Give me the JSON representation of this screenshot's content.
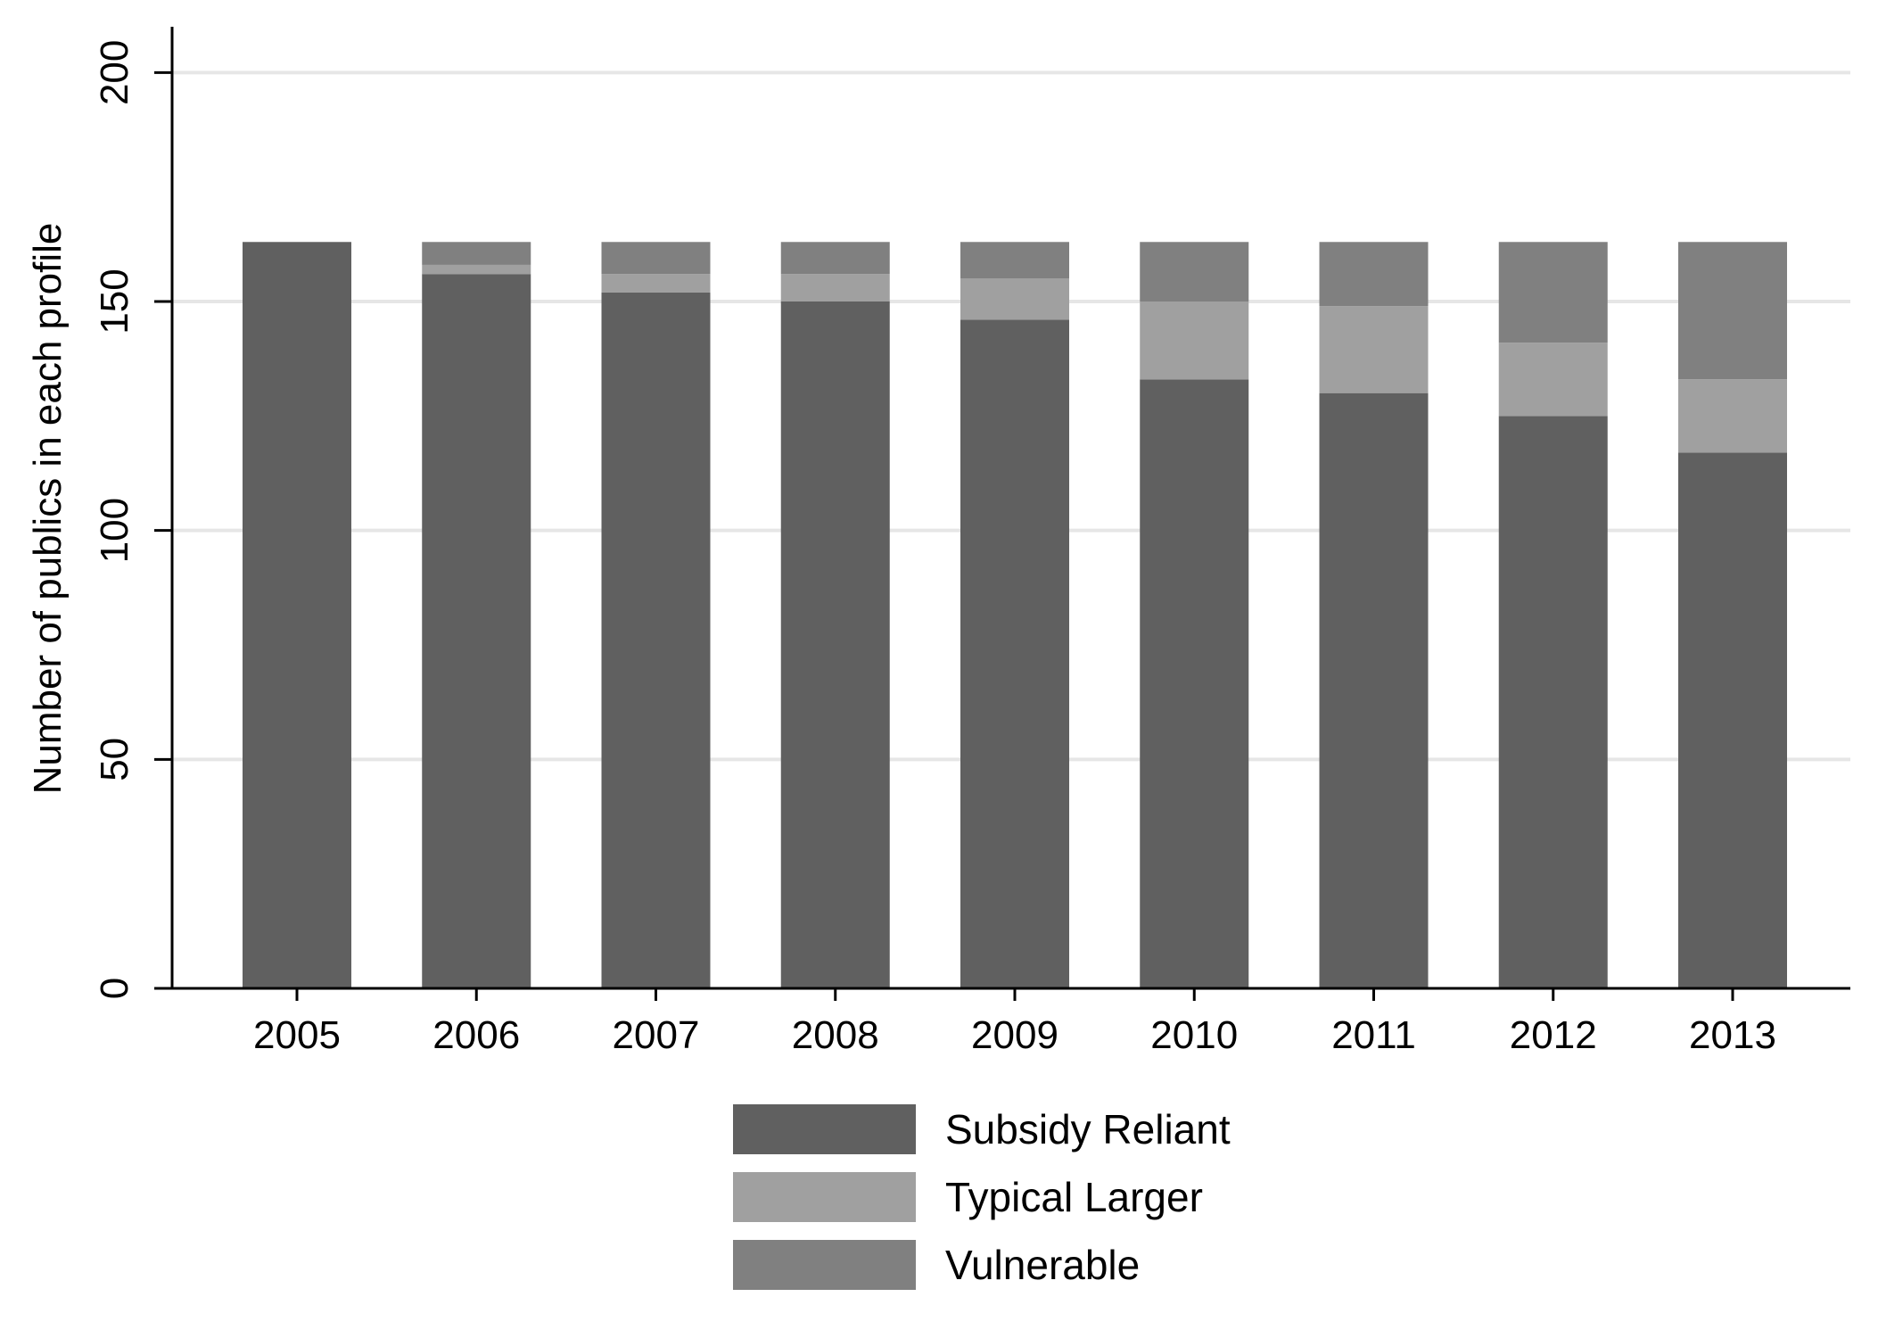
{
  "chart_data": {
    "type": "bar",
    "stacked": true,
    "title": "",
    "xlabel": "",
    "ylabel": "Number of publics in each profile",
    "categories": [
      "2005",
      "2006",
      "2007",
      "2008",
      "2009",
      "2010",
      "2011",
      "2012",
      "2013"
    ],
    "series": [
      {
        "name": "Subsidy Reliant",
        "color": "#606060",
        "values": [
          163,
          156,
          152,
          150,
          146,
          133,
          130,
          125,
          117
        ]
      },
      {
        "name": "Typical Larger",
        "color": "#a0a0a0",
        "values": [
          0,
          2,
          4,
          6,
          9,
          17,
          19,
          16,
          16
        ]
      },
      {
        "name": "Vulnerable",
        "color": "#808080",
        "values": [
          0,
          5,
          7,
          7,
          8,
          13,
          14,
          22,
          30
        ]
      }
    ],
    "ylim": [
      0,
      210
    ],
    "yticks": [
      0,
      50,
      100,
      150,
      200
    ],
    "grid": true,
    "legend_position": "bottom"
  }
}
